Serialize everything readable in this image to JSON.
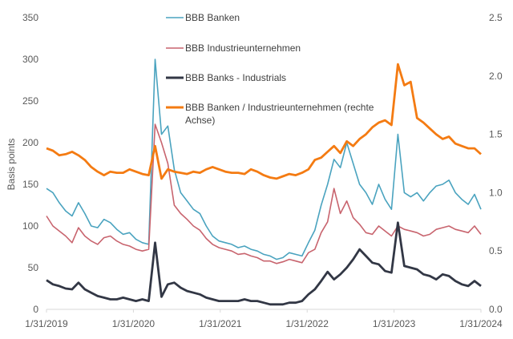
{
  "chart_data": {
    "type": "line",
    "title": "",
    "xlabel": "",
    "ylabel": "Basis points",
    "y2label": "",
    "ylim": [
      0,
      350
    ],
    "y2lim": [
      0.0,
      2.5
    ],
    "yticks": [
      "0",
      "50",
      "100",
      "150",
      "200",
      "250",
      "300",
      "350"
    ],
    "y2ticks": [
      "0.0",
      "0.5",
      "1.0",
      "1.5",
      "2.0",
      "2.5"
    ],
    "xticks": [
      "1/31/2019",
      "1/31/2020",
      "1/31/2021",
      "1/31/2022",
      "1/31/2023",
      "1/31/2024"
    ],
    "xrange": [
      "2019-01-31",
      "2024-01-31"
    ],
    "grid": false,
    "legend_position": "top-center",
    "x_frequency": "monthly (approx., 2019-01 to 2024-01)",
    "series": [
      {
        "name": "BBB Banken",
        "axis": "left",
        "color": "#4aa3bf",
        "values": [
          145,
          140,
          128,
          118,
          112,
          128,
          115,
          100,
          98,
          108,
          104,
          96,
          90,
          92,
          84,
          80,
          78,
          300,
          210,
          220,
          168,
          140,
          130,
          120,
          115,
          100,
          88,
          82,
          80,
          78,
          74,
          76,
          72,
          70,
          66,
          64,
          60,
          62,
          68,
          66,
          64,
          80,
          95,
          125,
          150,
          180,
          170,
          200,
          175,
          150,
          140,
          126,
          150,
          132,
          120,
          210,
          140,
          135,
          140,
          130,
          140,
          148,
          150,
          155,
          140,
          132,
          126,
          138,
          120
        ]
      },
      {
        "name": "BBB Industrieunternehmen",
        "axis": "left",
        "color": "#c8646e",
        "values": [
          112,
          100,
          94,
          88,
          80,
          98,
          88,
          82,
          78,
          86,
          88,
          82,
          78,
          76,
          72,
          70,
          72,
          222,
          200,
          175,
          125,
          115,
          108,
          100,
          95,
          85,
          78,
          74,
          72,
          70,
          66,
          67,
          64,
          62,
          58,
          58,
          55,
          57,
          60,
          58,
          56,
          68,
          72,
          92,
          105,
          145,
          115,
          130,
          110,
          102,
          92,
          90,
          100,
          94,
          88,
          100,
          96,
          94,
          92,
          88,
          90,
          96,
          98,
          100,
          96,
          94,
          92,
          100,
          90
        ]
      },
      {
        "name": "BBB Banks - Industrials",
        "axis": "left",
        "color": "#323745",
        "values": [
          35,
          30,
          28,
          25,
          24,
          32,
          24,
          20,
          16,
          14,
          12,
          12,
          14,
          12,
          10,
          12,
          10,
          80,
          15,
          30,
          32,
          26,
          22,
          20,
          18,
          14,
          12,
          10,
          10,
          10,
          10,
          12,
          10,
          10,
          8,
          6,
          6,
          6,
          8,
          8,
          10,
          18,
          24,
          34,
          45,
          36,
          42,
          50,
          60,
          72,
          64,
          56,
          54,
          46,
          44,
          104,
          52,
          50,
          48,
          42,
          40,
          36,
          42,
          40,
          34,
          30,
          28,
          34,
          28
        ]
      },
      {
        "name": "BBB Banken / Industrieunternehmen (rechte Achse)",
        "axis": "right",
        "color": "#f47b12",
        "values": [
          1.38,
          1.36,
          1.32,
          1.33,
          1.35,
          1.32,
          1.28,
          1.22,
          1.18,
          1.15,
          1.18,
          1.17,
          1.17,
          1.2,
          1.18,
          1.16,
          1.15,
          1.4,
          1.12,
          1.2,
          1.18,
          1.17,
          1.16,
          1.18,
          1.17,
          1.2,
          1.22,
          1.2,
          1.18,
          1.17,
          1.17,
          1.16,
          1.2,
          1.18,
          1.15,
          1.13,
          1.12,
          1.14,
          1.16,
          1.15,
          1.17,
          1.2,
          1.28,
          1.3,
          1.35,
          1.4,
          1.34,
          1.44,
          1.4,
          1.46,
          1.5,
          1.56,
          1.6,
          1.62,
          1.58,
          2.1,
          1.92,
          1.95,
          1.64,
          1.6,
          1.55,
          1.5,
          1.46,
          1.48,
          1.42,
          1.4,
          1.38,
          1.38,
          1.33
        ]
      }
    ]
  }
}
